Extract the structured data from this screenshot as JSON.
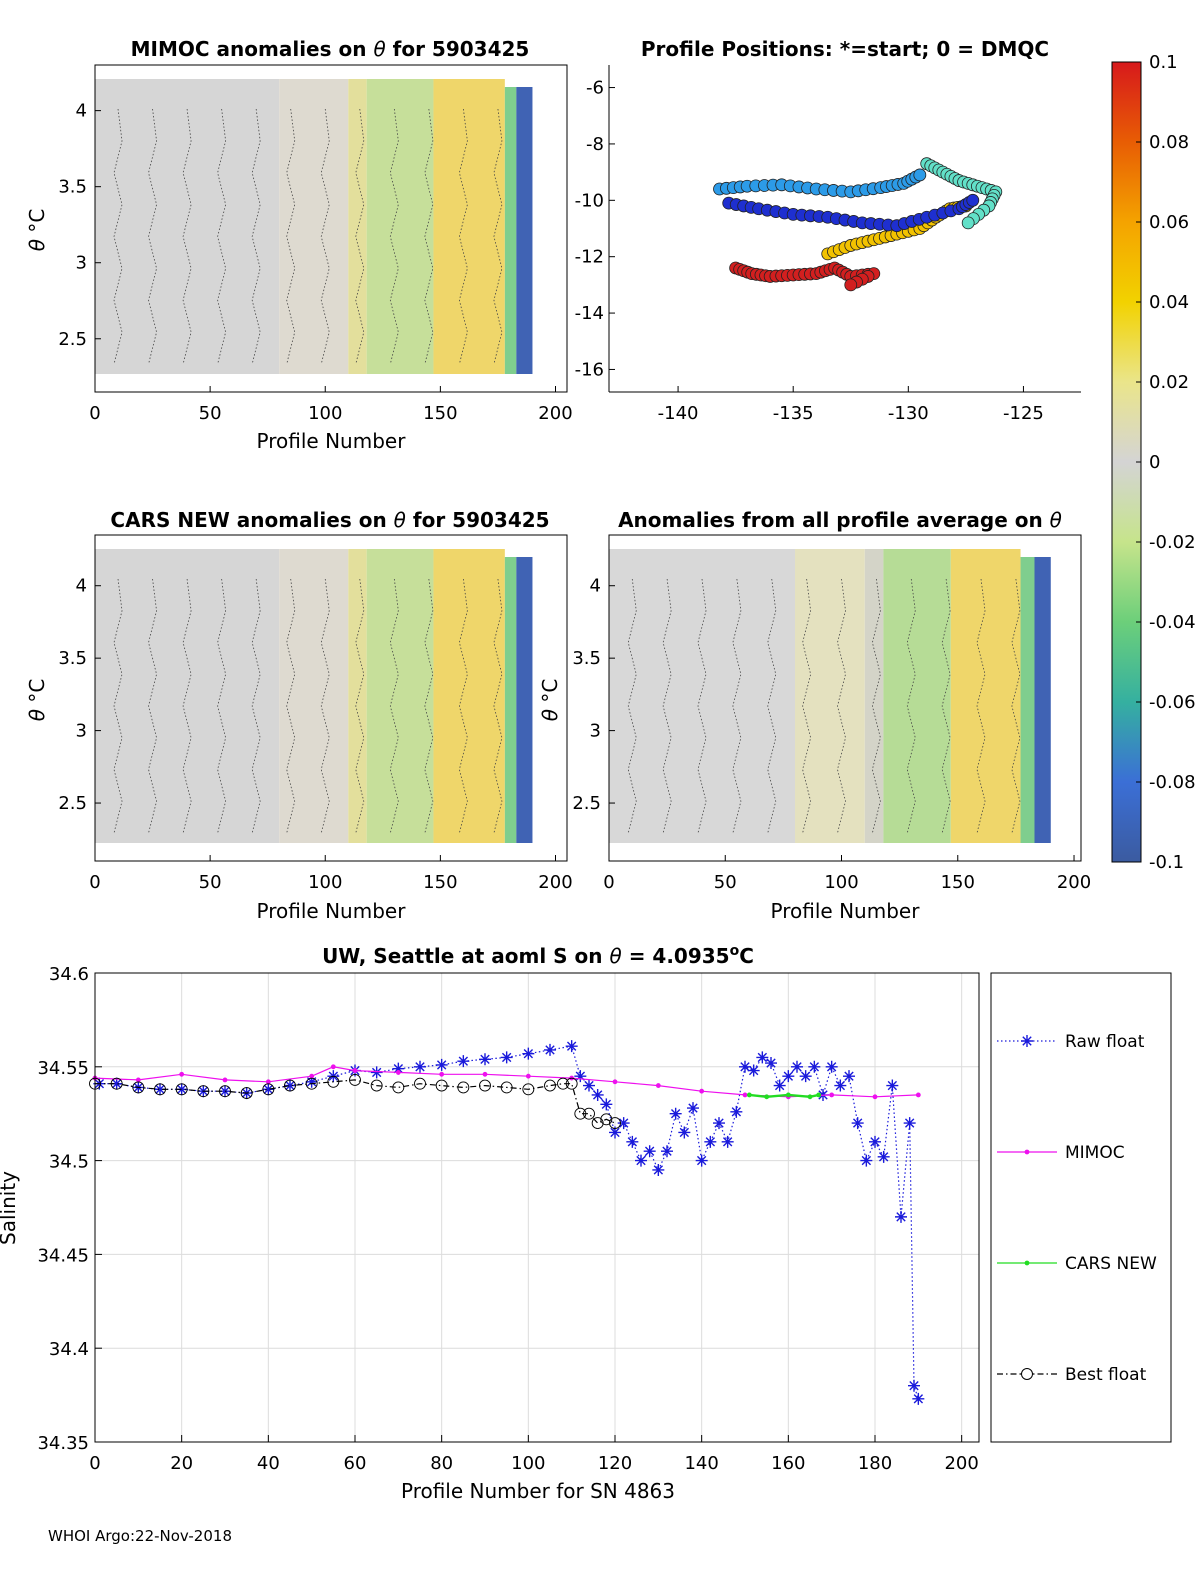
{
  "footer": "WHOI Argo:22-Nov-2018",
  "colorbar": {
    "ticks": [
      "0.1",
      "0.08",
      "0.06",
      "0.04",
      "0.02",
      "0",
      "-0.02",
      "-0.04",
      "-0.06",
      "-0.08",
      "-0.1"
    ],
    "tick_values": [
      0.1,
      0.08,
      0.06,
      0.04,
      0.02,
      0,
      -0.02,
      -0.04,
      -0.06,
      -0.08,
      -0.1
    ],
    "colors": [
      "#d7191c",
      "#e85d04",
      "#f4a300",
      "#f2d200",
      "#eae58a",
      "#d4d4d4",
      "#c6e48b",
      "#6ccf7a",
      "#35b0a0",
      "#3b6fd6",
      "#3b5ba0"
    ]
  },
  "chart_data": [
    {
      "id": "mimoc",
      "type": "heatmap",
      "title": "MIMOC anomalies on θ  for 5903425",
      "title_prefix": "MIMOC anomalies on ",
      "title_symbol": "θ",
      "title_suffix": "  for 5903425",
      "xlabel": "Profile Number",
      "ylabel_symbol": "θ",
      "ylabel_unit": "°C",
      "xlim": [
        0,
        205
      ],
      "ylim": [
        2.15,
        4.3
      ],
      "xticks": [
        0,
        50,
        100,
        150,
        200
      ],
      "yticks": [
        2.5,
        3,
        3.5,
        4
      ],
      "regions": [
        {
          "x": [
            0,
            80
          ],
          "c": "#d6d6d6"
        },
        {
          "x": [
            80,
            110
          ],
          "c": "#dedad0"
        },
        {
          "x": [
            110,
            118
          ],
          "c": "#e3df9c"
        },
        {
          "x": [
            118,
            147
          ],
          "c": "#c6df9a"
        },
        {
          "x": [
            147,
            178
          ],
          "c": "#efd66a"
        },
        {
          "x": [
            178,
            183
          ],
          "c": "#7fce8e"
        },
        {
          "x": [
            183,
            190
          ],
          "c": "#4063b4"
        }
      ]
    },
    {
      "id": "positions",
      "type": "scatter",
      "title": "Profile Positions: *=start; 0 = DMQC",
      "xlim": [
        -143,
        -122.5
      ],
      "ylim": [
        -16.8,
        -5.2
      ],
      "xticks": [
        -140,
        -135,
        -130,
        -125
      ],
      "yticks": [
        -6,
        -8,
        -10,
        -12,
        -14,
        -16
      ],
      "tracks": [
        {
          "name": "red",
          "color": "#d21f1f",
          "points": [
            [
              -137.5,
              -12.4
            ],
            [
              -136.8,
              -12.6
            ],
            [
              -136,
              -12.7
            ],
            [
              -135,
              -12.65
            ],
            [
              -134,
              -12.6
            ],
            [
              -133.2,
              -12.4
            ],
            [
              -132.5,
              -12.7
            ],
            [
              -131.5,
              -12.6
            ],
            [
              -132.5,
              -13.0
            ]
          ]
        },
        {
          "name": "yellow",
          "color": "#f2c200",
          "points": [
            [
              -133.5,
              -11.9
            ],
            [
              -132.5,
              -11.6
            ],
            [
              -131.5,
              -11.4
            ],
            [
              -130.5,
              -11.2
            ],
            [
              -129.5,
              -11.0
            ],
            [
              -128.8,
              -10.6
            ],
            [
              -128.2,
              -10.3
            ],
            [
              -127.5,
              -10.2
            ]
          ]
        },
        {
          "name": "darkblue",
          "color": "#1e2fd0",
          "points": [
            [
              -137.8,
              -10.1
            ],
            [
              -136.5,
              -10.3
            ],
            [
              -135,
              -10.5
            ],
            [
              -133.5,
              -10.6
            ],
            [
              -132,
              -10.8
            ],
            [
              -130.5,
              -10.9
            ],
            [
              -129.2,
              -10.6
            ],
            [
              -127.8,
              -10.3
            ],
            [
              -127.2,
              -10.0
            ]
          ]
        },
        {
          "name": "skyblue",
          "color": "#2c9be8",
          "points": [
            [
              -138.2,
              -9.6
            ],
            [
              -137,
              -9.5
            ],
            [
              -135.5,
              -9.45
            ],
            [
              -134,
              -9.6
            ],
            [
              -132.5,
              -9.7
            ],
            [
              -131.2,
              -9.55
            ],
            [
              -130.2,
              -9.4
            ],
            [
              -129.5,
              -9.1
            ]
          ]
        },
        {
          "name": "teal",
          "color": "#62e0c8",
          "points": [
            [
              -129.2,
              -8.7
            ],
            [
              -128.5,
              -9.0
            ],
            [
              -127.8,
              -9.3
            ],
            [
              -127,
              -9.5
            ],
            [
              -126.2,
              -9.7
            ],
            [
              -126.5,
              -10.2
            ],
            [
              -127.4,
              -10.8
            ]
          ]
        }
      ]
    },
    {
      "id": "cars",
      "type": "heatmap",
      "title": "CARS NEW anomalies on θ for 5903425",
      "title_prefix": "CARS NEW anomalies on ",
      "title_symbol": "θ",
      "title_suffix": " for 5903425",
      "xlabel": "Profile Number",
      "ylabel_symbol": "θ",
      "ylabel_unit": "°C",
      "xlim": [
        0,
        205
      ],
      "ylim": [
        2.1,
        4.35
      ],
      "xticks": [
        0,
        50,
        100,
        150,
        200
      ],
      "yticks": [
        2.5,
        3,
        3.5,
        4
      ],
      "regions": [
        {
          "x": [
            0,
            80
          ],
          "c": "#d6d6d6"
        },
        {
          "x": [
            80,
            110
          ],
          "c": "#dedad0"
        },
        {
          "x": [
            110,
            118
          ],
          "c": "#e3df9c"
        },
        {
          "x": [
            118,
            147
          ],
          "c": "#c6df9a"
        },
        {
          "x": [
            147,
            178
          ],
          "c": "#efd66a"
        },
        {
          "x": [
            178,
            183
          ],
          "c": "#7fce8e"
        },
        {
          "x": [
            183,
            190
          ],
          "c": "#4063b4"
        }
      ]
    },
    {
      "id": "avg",
      "type": "heatmap",
      "title": "Anomalies from all profile average on θ",
      "title_prefix": "Anomalies from all profile average on ",
      "title_symbol": "θ",
      "title_suffix": "",
      "xlabel": "Profile Number",
      "ylabel_symbol": "θ",
      "ylabel_unit": "°C",
      "xlim": [
        0,
        203
      ],
      "ylim": [
        2.1,
        4.35
      ],
      "xticks": [
        0,
        50,
        100,
        150,
        200
      ],
      "yticks": [
        2.5,
        3,
        3.5,
        4
      ],
      "regions": [
        {
          "x": [
            0,
            80
          ],
          "c": "#d8d8d8"
        },
        {
          "x": [
            80,
            110
          ],
          "c": "#e4e1bf"
        },
        {
          "x": [
            110,
            118
          ],
          "c": "#d4d4c8"
        },
        {
          "x": [
            118,
            147
          ],
          "c": "#b6dc96"
        },
        {
          "x": [
            147,
            177
          ],
          "c": "#efd66a"
        },
        {
          "x": [
            177,
            183
          ],
          "c": "#7fce8e"
        },
        {
          "x": [
            183,
            190
          ],
          "c": "#4063b4"
        }
      ]
    },
    {
      "id": "salinity",
      "type": "line",
      "title_prefix": "UW, Seattle at aoml S on ",
      "title_symbol": "θ",
      "title_mid": " = 4.0935",
      "title_sup": "o",
      "title_unit": "C",
      "xlabel": "Profile Number for SN 4863",
      "ylabel": "Salinity",
      "xlim": [
        0,
        204
      ],
      "ylim": [
        34.35,
        34.6
      ],
      "xticks": [
        0,
        20,
        40,
        60,
        80,
        100,
        120,
        140,
        160,
        180,
        200
      ],
      "yticks": [
        34.35,
        34.4,
        34.45,
        34.5,
        34.55,
        34.6
      ],
      "ytick_labels": [
        "34.35",
        "34.4",
        "34.45",
        "34.5",
        "34.55",
        "34.6"
      ],
      "legend": [
        "Raw float",
        "MIMOC",
        "CARS NEW",
        "Best float"
      ],
      "series": [
        {
          "name": "Raw float",
          "color": "#1a1adb",
          "x": [
            1,
            5,
            10,
            15,
            20,
            25,
            30,
            35,
            40,
            45,
            50,
            55,
            60,
            65,
            70,
            75,
            80,
            85,
            90,
            95,
            100,
            105,
            110,
            112,
            114,
            116,
            118,
            120,
            122,
            124,
            126,
            128,
            130,
            132,
            134,
            136,
            138,
            140,
            142,
            144,
            146,
            148,
            150,
            152,
            154,
            156,
            158,
            160,
            162,
            164,
            166,
            168,
            170,
            172,
            174,
            176,
            178,
            180,
            182,
            184,
            186,
            188,
            189,
            190
          ],
          "y": [
            34.541,
            34.541,
            34.539,
            34.538,
            34.538,
            34.537,
            34.537,
            34.536,
            34.538,
            34.54,
            34.542,
            34.545,
            34.548,
            34.547,
            34.549,
            34.55,
            34.551,
            34.553,
            34.554,
            34.555,
            34.557,
            34.559,
            34.561,
            34.545,
            34.54,
            34.535,
            34.53,
            34.515,
            34.52,
            34.51,
            34.5,
            34.505,
            34.495,
            34.505,
            34.525,
            34.515,
            34.528,
            34.5,
            34.51,
            34.52,
            34.51,
            34.526,
            34.55,
            34.548,
            34.555,
            34.552,
            34.54,
            34.545,
            34.55,
            34.545,
            34.55,
            34.535,
            34.55,
            34.54,
            34.545,
            34.52,
            34.5,
            34.51,
            34.502,
            34.54,
            34.47,
            34.52,
            34.38,
            34.373
          ]
        },
        {
          "name": "MIMOC",
          "color": "#ee10ee",
          "x": [
            0,
            10,
            20,
            30,
            40,
            50,
            55,
            60,
            70,
            80,
            90,
            100,
            110,
            120,
            130,
            140,
            150,
            160,
            170,
            180,
            190
          ],
          "y": [
            34.544,
            34.543,
            34.546,
            34.543,
            34.542,
            34.545,
            34.55,
            34.548,
            34.547,
            34.546,
            34.546,
            34.545,
            34.544,
            34.542,
            34.54,
            34.537,
            34.535,
            34.534,
            34.535,
            34.534,
            34.535
          ]
        },
        {
          "name": "CARS NEW",
          "color": "#22dd22",
          "x": [
            151,
            155,
            160,
            165,
            167
          ],
          "y": [
            34.535,
            34.534,
            34.535,
            34.534,
            34.535
          ]
        },
        {
          "name": "Best float",
          "color": "#000000",
          "x": [
            0,
            5,
            10,
            15,
            20,
            25,
            30,
            35,
            40,
            45,
            50,
            55,
            60,
            65,
            70,
            75,
            80,
            85,
            90,
            95,
            100,
            105,
            108,
            110,
            112,
            114,
            116,
            118,
            120
          ],
          "y": [
            34.541,
            34.541,
            34.539,
            34.538,
            34.538,
            34.537,
            34.537,
            34.536,
            34.538,
            34.54,
            34.541,
            34.542,
            34.543,
            34.54,
            34.539,
            34.541,
            34.54,
            34.539,
            34.54,
            34.539,
            34.538,
            34.54,
            34.541,
            34.541,
            34.525,
            34.525,
            34.52,
            34.522,
            34.52
          ]
        }
      ]
    }
  ]
}
